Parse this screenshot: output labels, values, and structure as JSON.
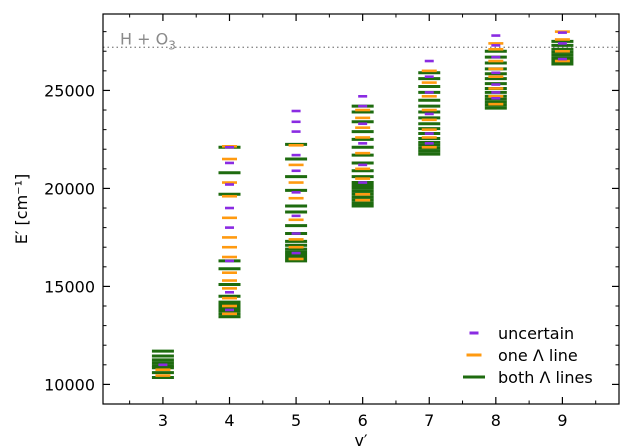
{
  "chart_data": {
    "type": "scatter",
    "title": "",
    "xlabel": "v′",
    "ylabel": "E′ [cm⁻¹]",
    "xlim": [
      2.1,
      9.85
    ],
    "ylim": [
      9000,
      28900
    ],
    "xticks": [
      3,
      4,
      5,
      6,
      7,
      8,
      9
    ],
    "yticks": [
      10000,
      15000,
      20000,
      25000
    ],
    "grid": false,
    "legend_position": "lower-right",
    "reference_line": {
      "label_base": "H + O",
      "label_sub": "3",
      "y": 27200,
      "color": "#8a8a8a",
      "style": "dotted"
    },
    "series": [
      {
        "name": "uncertain",
        "color": "#8a2be2",
        "marker": "short-dash",
        "points": [
          {
            "x": 3,
            "y": 11000
          },
          {
            "x": 4,
            "y": 13800
          },
          {
            "x": 4,
            "y": 14700
          },
          {
            "x": 4,
            "y": 16300
          },
          {
            "x": 4,
            "y": 18000
          },
          {
            "x": 4,
            "y": 19000
          },
          {
            "x": 4,
            "y": 20200
          },
          {
            "x": 4,
            "y": 21300
          },
          {
            "x": 4,
            "y": 22100
          },
          {
            "x": 5,
            "y": 23950
          },
          {
            "x": 5,
            "y": 23400
          },
          {
            "x": 5,
            "y": 22900
          },
          {
            "x": 5,
            "y": 21700
          },
          {
            "x": 5,
            "y": 20900
          },
          {
            "x": 5,
            "y": 19800
          },
          {
            "x": 5,
            "y": 18600
          },
          {
            "x": 5,
            "y": 17700
          },
          {
            "x": 5,
            "y": 16700
          },
          {
            "x": 6,
            "y": 24700
          },
          {
            "x": 6,
            "y": 24200
          },
          {
            "x": 6,
            "y": 23300
          },
          {
            "x": 6,
            "y": 22300
          },
          {
            "x": 6,
            "y": 21200
          },
          {
            "x": 6,
            "y": 20300
          },
          {
            "x": 7,
            "y": 26500
          },
          {
            "x": 7,
            "y": 25700
          },
          {
            "x": 7,
            "y": 24900
          },
          {
            "x": 7,
            "y": 23800
          },
          {
            "x": 7,
            "y": 22800
          },
          {
            "x": 7,
            "y": 22300
          },
          {
            "x": 8,
            "y": 27800
          },
          {
            "x": 8,
            "y": 27300
          },
          {
            "x": 8,
            "y": 26700
          },
          {
            "x": 8,
            "y": 25900
          },
          {
            "x": 8,
            "y": 25300
          },
          {
            "x": 8,
            "y": 24900
          },
          {
            "x": 8,
            "y": 24600
          },
          {
            "x": 9,
            "y": 27950
          },
          {
            "x": 9,
            "y": 27400
          },
          {
            "x": 9,
            "y": 26600
          }
        ]
      },
      {
        "name": "one Λ line",
        "color": "#ff9a10",
        "marker": "dash",
        "points": [
          {
            "x": 3,
            "y": 10750
          },
          {
            "x": 3,
            "y": 10450
          },
          {
            "x": 4,
            "y": 22150
          },
          {
            "x": 4,
            "y": 21500
          },
          {
            "x": 4,
            "y": 20300
          },
          {
            "x": 4,
            "y": 19600
          },
          {
            "x": 4,
            "y": 18500
          },
          {
            "x": 4,
            "y": 17500
          },
          {
            "x": 4,
            "y": 17000
          },
          {
            "x": 4,
            "y": 16500
          },
          {
            "x": 4,
            "y": 15700
          },
          {
            "x": 4,
            "y": 15300
          },
          {
            "x": 4,
            "y": 14900
          },
          {
            "x": 4,
            "y": 14400
          },
          {
            "x": 4,
            "y": 14000
          },
          {
            "x": 4,
            "y": 13600
          },
          {
            "x": 5,
            "y": 22200
          },
          {
            "x": 5,
            "y": 21200
          },
          {
            "x": 5,
            "y": 20300
          },
          {
            "x": 5,
            "y": 19500
          },
          {
            "x": 5,
            "y": 18400
          },
          {
            "x": 5,
            "y": 17400
          },
          {
            "x": 5,
            "y": 17000
          },
          {
            "x": 5,
            "y": 16400
          },
          {
            "x": 6,
            "y": 24000
          },
          {
            "x": 6,
            "y": 23600
          },
          {
            "x": 6,
            "y": 23100
          },
          {
            "x": 6,
            "y": 22600
          },
          {
            "x": 6,
            "y": 21800
          },
          {
            "x": 6,
            "y": 21000
          },
          {
            "x": 6,
            "y": 20500
          },
          {
            "x": 6,
            "y": 19700
          },
          {
            "x": 6,
            "y": 19400
          },
          {
            "x": 7,
            "y": 26000
          },
          {
            "x": 7,
            "y": 25400
          },
          {
            "x": 7,
            "y": 24700
          },
          {
            "x": 7,
            "y": 24000
          },
          {
            "x": 7,
            "y": 23500
          },
          {
            "x": 7,
            "y": 23000
          },
          {
            "x": 7,
            "y": 22600
          },
          {
            "x": 7,
            "y": 22100
          },
          {
            "x": 8,
            "y": 27400
          },
          {
            "x": 8,
            "y": 27100
          },
          {
            "x": 8,
            "y": 26500
          },
          {
            "x": 8,
            "y": 26100
          },
          {
            "x": 8,
            "y": 25700
          },
          {
            "x": 8,
            "y": 25100
          },
          {
            "x": 8,
            "y": 24700
          },
          {
            "x": 8,
            "y": 24300
          },
          {
            "x": 9,
            "y": 28000
          },
          {
            "x": 9,
            "y": 27600
          },
          {
            "x": 9,
            "y": 27000
          },
          {
            "x": 9,
            "y": 26500
          }
        ]
      },
      {
        "name": "both Λ lines",
        "color": "#1e6b0f",
        "marker": "long-dash",
        "points": [
          {
            "x": 3,
            "y": 11700
          },
          {
            "x": 3,
            "y": 11450
          },
          {
            "x": 3,
            "y": 11250
          },
          {
            "x": 3,
            "y": 11100
          },
          {
            "x": 3,
            "y": 10950
          },
          {
            "x": 3,
            "y": 10850
          },
          {
            "x": 3,
            "y": 10600
          },
          {
            "x": 3,
            "y": 10350
          },
          {
            "x": 4,
            "y": 22100
          },
          {
            "x": 4,
            "y": 20800
          },
          {
            "x": 4,
            "y": 19700
          },
          {
            "x": 4,
            "y": 16300
          },
          {
            "x": 4,
            "y": 15900
          },
          {
            "x": 4,
            "y": 15100
          },
          {
            "x": 4,
            "y": 14500
          },
          {
            "x": 4,
            "y": 14200
          },
          {
            "x": 4,
            "y": 14050
          },
          {
            "x": 4,
            "y": 13900
          },
          {
            "x": 4,
            "y": 13750
          },
          {
            "x": 4,
            "y": 13600
          },
          {
            "x": 4,
            "y": 13450
          },
          {
            "x": 5,
            "y": 22250
          },
          {
            "x": 5,
            "y": 21500
          },
          {
            "x": 5,
            "y": 20600
          },
          {
            "x": 5,
            "y": 19900
          },
          {
            "x": 5,
            "y": 19100
          },
          {
            "x": 5,
            "y": 18800
          },
          {
            "x": 5,
            "y": 18100
          },
          {
            "x": 5,
            "y": 17700
          },
          {
            "x": 5,
            "y": 17300
          },
          {
            "x": 5,
            "y": 17100
          },
          {
            "x": 5,
            "y": 16900
          },
          {
            "x": 5,
            "y": 16750
          },
          {
            "x": 5,
            "y": 16600
          },
          {
            "x": 5,
            "y": 16450
          },
          {
            "x": 5,
            "y": 16300
          },
          {
            "x": 6,
            "y": 24200
          },
          {
            "x": 6,
            "y": 23900
          },
          {
            "x": 6,
            "y": 23400
          },
          {
            "x": 6,
            "y": 22900
          },
          {
            "x": 6,
            "y": 22500
          },
          {
            "x": 6,
            "y": 22100
          },
          {
            "x": 6,
            "y": 21700
          },
          {
            "x": 6,
            "y": 21300
          },
          {
            "x": 6,
            "y": 20900
          },
          {
            "x": 6,
            "y": 20600
          },
          {
            "x": 6,
            "y": 20300
          },
          {
            "x": 6,
            "y": 20150
          },
          {
            "x": 6,
            "y": 20000
          },
          {
            "x": 6,
            "y": 19850
          },
          {
            "x": 6,
            "y": 19700
          },
          {
            "x": 6,
            "y": 19550
          },
          {
            "x": 6,
            "y": 19400
          },
          {
            "x": 6,
            "y": 19250
          },
          {
            "x": 6,
            "y": 19100
          },
          {
            "x": 7,
            "y": 25900
          },
          {
            "x": 7,
            "y": 25600
          },
          {
            "x": 7,
            "y": 25200
          },
          {
            "x": 7,
            "y": 24900
          },
          {
            "x": 7,
            "y": 24500
          },
          {
            "x": 7,
            "y": 24200
          },
          {
            "x": 7,
            "y": 23900
          },
          {
            "x": 7,
            "y": 23600
          },
          {
            "x": 7,
            "y": 23300
          },
          {
            "x": 7,
            "y": 23050
          },
          {
            "x": 7,
            "y": 22800
          },
          {
            "x": 7,
            "y": 22550
          },
          {
            "x": 7,
            "y": 22350
          },
          {
            "x": 7,
            "y": 22200
          },
          {
            "x": 7,
            "y": 22050
          },
          {
            "x": 7,
            "y": 21900
          },
          {
            "x": 7,
            "y": 21750
          },
          {
            "x": 8,
            "y": 27000
          },
          {
            "x": 8,
            "y": 26700
          },
          {
            "x": 8,
            "y": 26400
          },
          {
            "x": 8,
            "y": 26100
          },
          {
            "x": 8,
            "y": 25850
          },
          {
            "x": 8,
            "y": 25600
          },
          {
            "x": 8,
            "y": 25350
          },
          {
            "x": 8,
            "y": 25100
          },
          {
            "x": 8,
            "y": 24900
          },
          {
            "x": 8,
            "y": 24700
          },
          {
            "x": 8,
            "y": 24550
          },
          {
            "x": 8,
            "y": 24400
          },
          {
            "x": 8,
            "y": 24250
          },
          {
            "x": 8,
            "y": 24100
          },
          {
            "x": 9,
            "y": 27500
          },
          {
            "x": 9,
            "y": 27300
          },
          {
            "x": 9,
            "y": 27100
          },
          {
            "x": 9,
            "y": 26950
          },
          {
            "x": 9,
            "y": 26800
          },
          {
            "x": 9,
            "y": 26650
          },
          {
            "x": 9,
            "y": 26500
          },
          {
            "x": 9,
            "y": 26350
          }
        ]
      }
    ]
  }
}
